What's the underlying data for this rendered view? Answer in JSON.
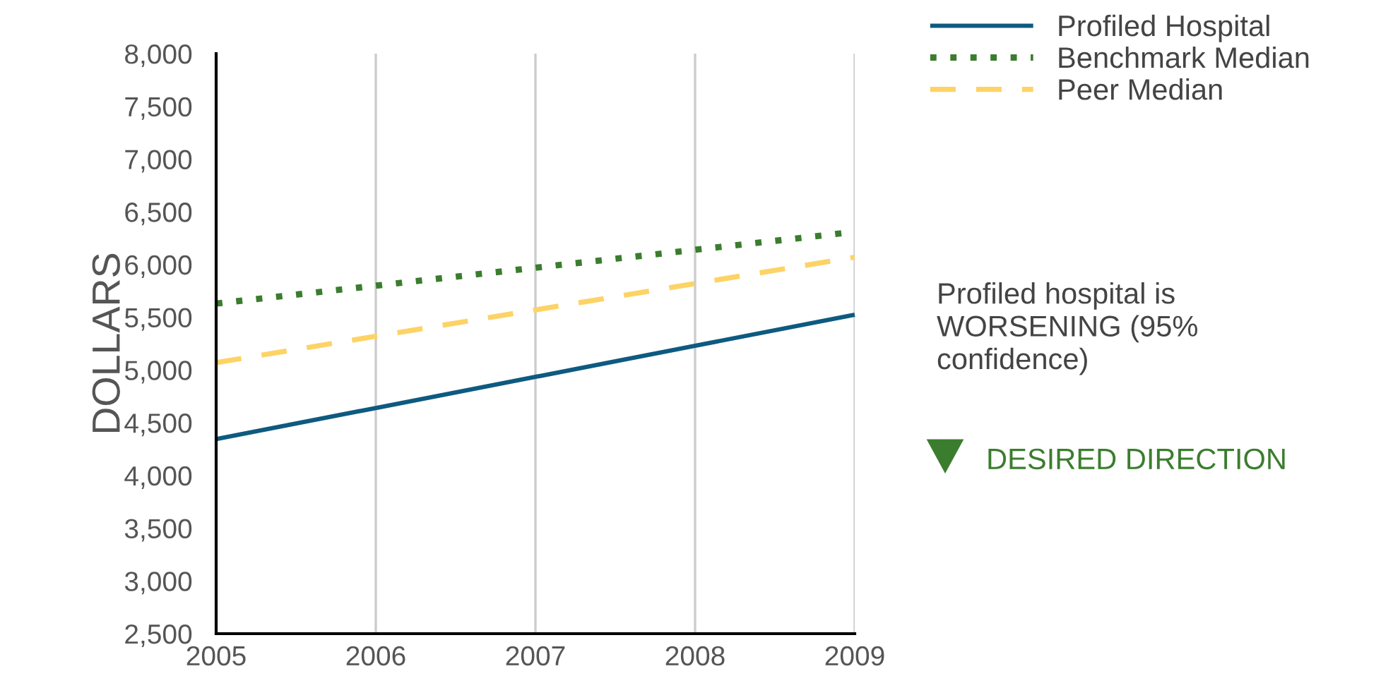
{
  "chart_data": {
    "type": "line",
    "ylabel": "DOLLARS",
    "x": [
      2005,
      2006,
      2007,
      2008,
      2009
    ],
    "xlim": [
      2005,
      2009
    ],
    "xticks": [
      2005,
      2006,
      2007,
      2008,
      2009
    ],
    "ylim": [
      2500,
      8000
    ],
    "yticks": [
      {
        "value": 2500,
        "label": "2,500"
      },
      {
        "value": 3000,
        "label": "3,000"
      },
      {
        "value": 3500,
        "label": "3,500"
      },
      {
        "value": 4000,
        "label": "4,000"
      },
      {
        "value": 4500,
        "label": "4,500"
      },
      {
        "value": 5000,
        "label": "5,000"
      },
      {
        "value": 5500,
        "label": "5,500"
      },
      {
        "value": 6000,
        "label": "6,000"
      },
      {
        "value": 6500,
        "label": "6,500"
      },
      {
        "value": 7000,
        "label": "7,000"
      },
      {
        "value": 7500,
        "label": "7,500"
      },
      {
        "value": 8000,
        "label": "8,000"
      }
    ],
    "grid": "x",
    "legend": "top right",
    "marker": "none",
    "series": [
      {
        "name": "Profiled Hospital",
        "color": "#0e5a80",
        "line_style": "solid",
        "values": [
          4345,
          4640,
          4935,
          5230,
          5525
        ]
      },
      {
        "name": "Benchmark Median",
        "color": "#3b7d2e",
        "line_style": "dotted",
        "values": [
          5630,
          5800,
          5970,
          6140,
          6310
        ]
      },
      {
        "name": "Peer Median",
        "color": "#fdd365",
        "line_style": "dashed",
        "values": [
          5070,
          5320,
          5570,
          5820,
          6070
        ]
      }
    ],
    "annotations": [
      "Profiled hospital is\nWORSENING (95%\nconfidence)",
      "DESIRED DIRECTION"
    ]
  }
}
